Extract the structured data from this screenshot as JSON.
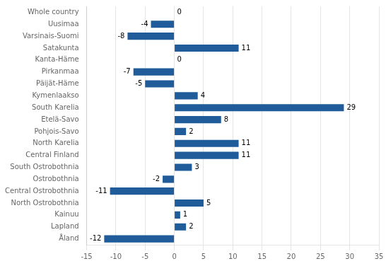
{
  "chart_data": {
    "type": "bar",
    "orientation": "horizontal",
    "categories": [
      "Whole country",
      "Uusimaa",
      "Varsinais-Suomi",
      "Satakunta",
      "Kanta-Häme",
      "Pirkanmaa",
      "Päijät-Häme",
      "Kymenlaakso",
      "South Karelia",
      "Etelä-Savo",
      "Pohjois-Savo",
      "North Karelia",
      "Central Finland",
      "South Ostrobothnia",
      "Ostrobothnia",
      "Central Ostrobothnia",
      "North Ostrobothnia",
      "Kainuu",
      "Lapland",
      "Åland"
    ],
    "values": [
      0,
      -4,
      -8,
      11,
      0,
      -7,
      -5,
      4,
      29,
      8,
      2,
      11,
      11,
      3,
      -2,
      -11,
      5,
      1,
      2,
      -12
    ],
    "color": "#1F5C99",
    "xlim": [
      -15,
      35
    ],
    "xticks": [
      -15,
      -10,
      -5,
      0,
      5,
      10,
      15,
      20,
      25,
      30,
      35
    ],
    "grid": true,
    "data_labels": true
  }
}
